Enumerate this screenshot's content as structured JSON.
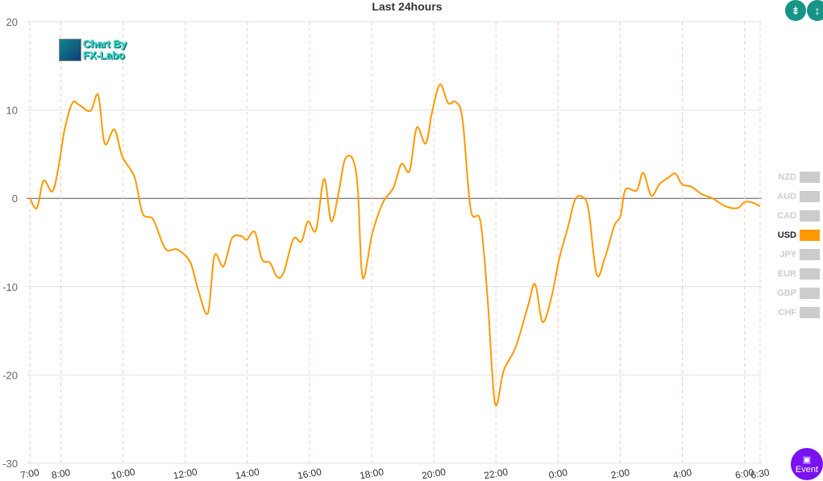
{
  "chart_data": {
    "type": "line",
    "title": "Last 24hours",
    "xlabel": "",
    "ylabel": "",
    "ylim": [
      -30,
      20
    ],
    "yticks": [
      20,
      10,
      0,
      -10,
      -20,
      -30
    ],
    "x_unit": "hours after 7:00",
    "xticks": [
      {
        "label": "7:00",
        "x": 0
      },
      {
        "label": "8:00",
        "x": 1
      },
      {
        "label": "10:00",
        "x": 3
      },
      {
        "label": "12:00",
        "x": 5
      },
      {
        "label": "14:00",
        "x": 7
      },
      {
        "label": "16:00",
        "x": 9
      },
      {
        "label": "18:00",
        "x": 11
      },
      {
        "label": "20:00",
        "x": 13
      },
      {
        "label": "22:00",
        "x": 15
      },
      {
        "label": "0:00",
        "x": 17
      },
      {
        "label": "2:00",
        "x": 19
      },
      {
        "label": "4:00",
        "x": 21
      },
      {
        "label": "6:00",
        "x": 23
      },
      {
        "label": "6:30",
        "x": 23.5
      }
    ],
    "series": [
      {
        "name": "USD",
        "color": "#ff9900",
        "points": [
          [
            0,
            0
          ],
          [
            0.23,
            -1.1
          ],
          [
            0.44,
            2
          ],
          [
            0.73,
            0.8
          ],
          [
            0.93,
            3.7
          ],
          [
            1.12,
            7.8
          ],
          [
            1.37,
            10.8
          ],
          [
            1.58,
            10.6
          ],
          [
            1.95,
            9.9
          ],
          [
            2.2,
            11.7
          ],
          [
            2.41,
            6.2
          ],
          [
            2.72,
            7.8
          ],
          [
            2.98,
            4.7
          ],
          [
            3.37,
            2.4
          ],
          [
            3.63,
            -1.7
          ],
          [
            3.97,
            -2.4
          ],
          [
            4.36,
            -5.7
          ],
          [
            4.75,
            -5.8
          ],
          [
            5.16,
            -7.2
          ],
          [
            5.42,
            -10.4
          ],
          [
            5.73,
            -13
          ],
          [
            5.94,
            -6.5
          ],
          [
            6.23,
            -7.7
          ],
          [
            6.51,
            -4.5
          ],
          [
            6.82,
            -4.3
          ],
          [
            6.98,
            -4.7
          ],
          [
            7.24,
            -3.8
          ],
          [
            7.47,
            -6.9
          ],
          [
            7.73,
            -7.3
          ],
          [
            7.96,
            -8.9
          ],
          [
            8.17,
            -8.4
          ],
          [
            8.48,
            -4.6
          ],
          [
            8.74,
            -4.9
          ],
          [
            8.95,
            -2.6
          ],
          [
            9.21,
            -3.6
          ],
          [
            9.47,
            2.2
          ],
          [
            9.7,
            -2.6
          ],
          [
            9.94,
            0.7
          ],
          [
            10.14,
            4.4
          ],
          [
            10.4,
            4.4
          ],
          [
            10.56,
            0.8
          ],
          [
            10.71,
            -9
          ],
          [
            11.02,
            -4
          ],
          [
            11.36,
            -0.5
          ],
          [
            11.7,
            1.2
          ],
          [
            11.96,
            3.9
          ],
          [
            12.22,
            3.1
          ],
          [
            12.45,
            8
          ],
          [
            12.74,
            6.2
          ],
          [
            12.94,
            9.7
          ],
          [
            13.2,
            12.9
          ],
          [
            13.46,
            10.8
          ],
          [
            13.72,
            10.9
          ],
          [
            13.93,
            8.8
          ],
          [
            14.19,
            -1.3
          ],
          [
            14.5,
            -2.6
          ],
          [
            14.73,
            -11.3
          ],
          [
            14.97,
            -23.2
          ],
          [
            15.25,
            -19.5
          ],
          [
            15.64,
            -16.8
          ],
          [
            16.03,
            -12.2
          ],
          [
            16.26,
            -9.7
          ],
          [
            16.5,
            -14
          ],
          [
            16.78,
            -11.3
          ],
          [
            17.04,
            -6.8
          ],
          [
            17.33,
            -3.1
          ],
          [
            17.54,
            -0.2
          ],
          [
            17.77,
            0.2
          ],
          [
            17.98,
            -1.3
          ],
          [
            18.24,
            -8.6
          ],
          [
            18.5,
            -6.8
          ],
          [
            18.81,
            -3.1
          ],
          [
            19.01,
            -2
          ],
          [
            19.17,
            1
          ],
          [
            19.53,
            0.9
          ],
          [
            19.74,
            2.9
          ],
          [
            20,
            0.3
          ],
          [
            20.26,
            1.6
          ],
          [
            20.57,
            2.4
          ],
          [
            20.78,
            2.8
          ],
          [
            20.99,
            1.6
          ],
          [
            21.3,
            1.3
          ],
          [
            21.61,
            0.5
          ],
          [
            21.97,
            0
          ],
          [
            22.39,
            -0.9
          ],
          [
            22.78,
            -1.1
          ],
          [
            23.01,
            -0.4
          ],
          [
            23.27,
            -0.5
          ],
          [
            23.5,
            -0.9
          ]
        ]
      }
    ],
    "legend": {
      "placement": "right",
      "items": [
        {
          "label": "NZD",
          "active": false
        },
        {
          "label": "AUD",
          "active": false
        },
        {
          "label": "CAD",
          "active": false
        },
        {
          "label": "USD",
          "active": true
        },
        {
          "label": "JPY",
          "active": false
        },
        {
          "label": "EUR",
          "active": false
        },
        {
          "label": "GBP",
          "active": false
        },
        {
          "label": "CHF",
          "active": false
        }
      ]
    },
    "grid": true
  },
  "watermark": {
    "line1": "Chart By",
    "line2": "FX-Labo"
  },
  "buttons": {
    "event_label": "Event",
    "collapse_icon": "compress-vertical-icon",
    "expand_icon": "expand-vertical-icon"
  }
}
